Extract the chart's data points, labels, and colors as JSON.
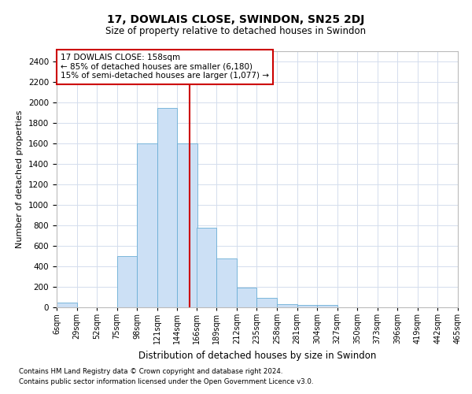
{
  "title": "17, DOWLAIS CLOSE, SWINDON, SN25 2DJ",
  "subtitle": "Size of property relative to detached houses in Swindon",
  "xlabel": "Distribution of detached houses by size in Swindon",
  "ylabel": "Number of detached properties",
  "footnote1": "Contains HM Land Registry data © Crown copyright and database right 2024.",
  "footnote2": "Contains public sector information licensed under the Open Government Licence v3.0.",
  "annotation_line1": "17 DOWLAIS CLOSE: 158sqm",
  "annotation_line2": "← 85% of detached houses are smaller (6,180)",
  "annotation_line3": "15% of semi-detached houses are larger (1,077) →",
  "bar_color": "#cce0f5",
  "bar_edge_color": "#6aaed6",
  "vline_color": "#cc0000",
  "vline_x": 158,
  "annotation_box_color": "#cc0000",
  "bins": [
    6,
    29,
    52,
    75,
    98,
    121,
    144,
    166,
    189,
    212,
    235,
    258,
    281,
    304,
    327,
    350,
    373,
    396,
    419,
    442,
    465
  ],
  "bin_labels": [
    "6sqm",
    "29sqm",
    "52sqm",
    "75sqm",
    "98sqm",
    "121sqm",
    "144sqm",
    "166sqm",
    "189sqm",
    "212sqm",
    "235sqm",
    "258sqm",
    "281sqm",
    "304sqm",
    "327sqm",
    "350sqm",
    "373sqm",
    "396sqm",
    "419sqm",
    "442sqm",
    "465sqm"
  ],
  "counts": [
    50,
    0,
    0,
    500,
    1600,
    1950,
    1600,
    780,
    480,
    190,
    90,
    30,
    25,
    20,
    0,
    0,
    0,
    0,
    0,
    0
  ],
  "ylim": [
    0,
    2500
  ],
  "yticks": [
    0,
    200,
    400,
    600,
    800,
    1000,
    1200,
    1400,
    1600,
    1800,
    2000,
    2200,
    2400
  ],
  "background_color": "#ffffff",
  "grid_color": "#d4dded"
}
